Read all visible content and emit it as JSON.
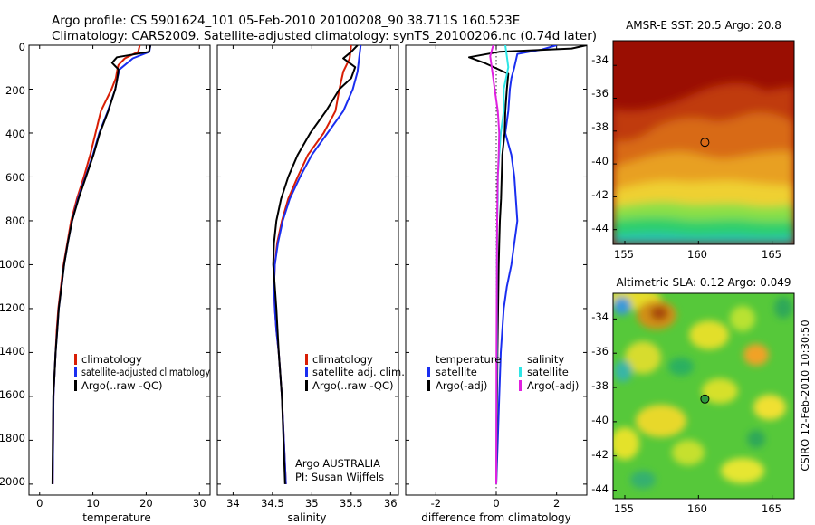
{
  "header": {
    "line1": "Argo profile: CS 5901624_101 05-Feb-2010 20100208_90 38.711S 160.523E",
    "line2": "Climatology: CARS2009. Satellite-adjusted climatology: synTS_20100206.nc (0.74d later)"
  },
  "colors": {
    "climatology": "#d81e05",
    "satellite": "#1a2ef0",
    "argo": "#000000",
    "salinity_satellite": "#2ee6e6",
    "salinity_argo": "#e020e0"
  },
  "chart_data": [
    {
      "type": "line",
      "name": "temperature-profile",
      "xlabel": "temperature",
      "ylabel": "",
      "xlim": [
        -2,
        32
      ],
      "ylim": [
        0,
        2050
      ],
      "y_inverted": true,
      "xticks": [
        "0",
        "10",
        "20",
        "30"
      ],
      "yticks": [
        "0",
        "200",
        "400",
        "600",
        "800",
        "1000",
        "1200",
        "1400",
        "1600",
        "1800",
        "2000"
      ],
      "legend": [
        "climatology",
        "satellite-adjusted climatology",
        "Argo(..raw -QC)"
      ],
      "legend_position": "lower-center",
      "series": [
        {
          "name": "climatology",
          "color": "#d81e05",
          "x": [
            18.8,
            18.5,
            16.0,
            14.8,
            14.6,
            14.3,
            13.5,
            11.5,
            10.5,
            9.5,
            8.3,
            7.0,
            5.9,
            5.2,
            4.5,
            4.0,
            3.5,
            3.2,
            3.0,
            2.8,
            2.6,
            2.45
          ],
          "y": [
            0,
            30,
            60,
            90,
            110,
            150,
            200,
            300,
            400,
            500,
            600,
            700,
            800,
            900,
            1000,
            1100,
            1200,
            1300,
            1400,
            1500,
            1600,
            2000
          ]
        },
        {
          "name": "satellite-adjusted climatology",
          "color": "#1a2ef0",
          "x": [
            20.8,
            20.6,
            17.5,
            16.0,
            15.0,
            14.6,
            14.2,
            12.8,
            11.2,
            10.0,
            8.6,
            7.2,
            6.1,
            5.3,
            4.6,
            4.1,
            3.6,
            3.3,
            3.0,
            2.8,
            2.6,
            2.45
          ],
          "y": [
            0,
            30,
            60,
            90,
            110,
            150,
            200,
            300,
            400,
            500,
            600,
            700,
            800,
            900,
            1000,
            1100,
            1200,
            1300,
            1400,
            1500,
            1600,
            2000
          ]
        },
        {
          "name": "Argo(..raw -QC)",
          "color": "#000000",
          "x": [
            20.8,
            20.5,
            14.5,
            13.6,
            14.8,
            14.6,
            14.2,
            12.9,
            11.3,
            10.1,
            8.7,
            7.3,
            6.1,
            5.3,
            4.6,
            4.1,
            3.6,
            3.3,
            3.0,
            2.8,
            2.55,
            2.4
          ],
          "y": [
            0,
            30,
            55,
            80,
            110,
            150,
            200,
            300,
            400,
            500,
            600,
            700,
            800,
            900,
            1000,
            1100,
            1200,
            1300,
            1400,
            1500,
            1600,
            2000
          ]
        }
      ]
    },
    {
      "type": "line",
      "name": "salinity-profile",
      "xlabel": "salinity",
      "ylabel": "",
      "xlim": [
        33.8,
        36.1
      ],
      "ylim": [
        0,
        2050
      ],
      "y_inverted": true,
      "xticks": [
        "34",
        "34.5",
        "35",
        "35.5",
        "36"
      ],
      "yticks": [],
      "legend": [
        "climatology",
        "satellite adj. clim.",
        "Argo(..raw -QC)"
      ],
      "legend_position": "lower-right",
      "annotation_line1": "Argo AUSTRALIA",
      "annotation_line2": "PI: Susan Wijffels",
      "series": [
        {
          "name": "climatology",
          "color": "#d81e05",
          "x": [
            35.5,
            35.48,
            35.4,
            35.35,
            35.3,
            35.15,
            34.95,
            34.82,
            34.7,
            34.62,
            34.56,
            34.53,
            34.52,
            34.53,
            34.55,
            34.58,
            34.62,
            34.67
          ],
          "y": [
            0,
            60,
            120,
            200,
            300,
            400,
            500,
            600,
            700,
            800,
            900,
            1000,
            1100,
            1200,
            1300,
            1400,
            1600,
            2000
          ]
        },
        {
          "name": "satellite adj. clim.",
          "color": "#1a2ef0",
          "x": [
            35.62,
            35.6,
            35.58,
            35.52,
            35.4,
            35.2,
            35.0,
            34.85,
            34.72,
            34.63,
            34.57,
            34.53,
            34.52,
            34.53,
            34.55,
            34.58,
            34.62,
            34.67
          ],
          "y": [
            0,
            60,
            120,
            200,
            300,
            400,
            500,
            600,
            700,
            800,
            900,
            1000,
            1100,
            1200,
            1300,
            1400,
            1600,
            2000
          ]
        },
        {
          "name": "Argo(..raw -QC)",
          "color": "#000000",
          "x": [
            35.58,
            35.5,
            35.4,
            35.55,
            35.5,
            35.35,
            35.18,
            34.98,
            34.82,
            34.7,
            34.61,
            34.55,
            34.52,
            34.51,
            34.53,
            34.55,
            34.58,
            34.62,
            34.66
          ],
          "y": [
            0,
            30,
            60,
            100,
            150,
            200,
            300,
            400,
            500,
            600,
            700,
            800,
            900,
            1000,
            1100,
            1200,
            1400,
            1600,
            2000
          ]
        }
      ]
    },
    {
      "type": "line",
      "name": "difference-profile",
      "xlabel": "difference from climatology",
      "ylabel": "",
      "xlim": [
        -3,
        3
      ],
      "ylim": [
        0,
        2050
      ],
      "y_inverted": true,
      "xticks": [
        "-2",
        "0",
        "2"
      ],
      "yticks": [],
      "legend_col1_heading": "temperature",
      "legend_col2_heading": "salinity",
      "legend": [
        "satellite",
        "Argo(-adj)",
        "satellite",
        "Argo(-adj)"
      ],
      "legend_position": "lower-center",
      "series": [
        {
          "name": "temperature satellite",
          "color": "#1a2ef0",
          "x": [
            2.0,
            1.5,
            0.7,
            0.6,
            0.5,
            0.45,
            0.4,
            0.3,
            0.5,
            0.6,
            0.7,
            0.6,
            0.5,
            0.35,
            0.25,
            0.15,
            0.1,
            0.05,
            0.0
          ],
          "y": [
            0,
            20,
            40,
            100,
            150,
            200,
            300,
            400,
            500,
            600,
            800,
            900,
            1000,
            1100,
            1200,
            1400,
            1600,
            1800,
            2000
          ]
        },
        {
          "name": "temperature Argo(-adj)",
          "color": "#000000",
          "x": [
            3.0,
            2.5,
            0.1,
            -0.9,
            -0.4,
            0.4,
            0.35,
            0.3,
            0.28,
            0.2,
            0.18,
            0.16,
            0.12,
            0.1,
            0.08,
            0.06,
            0.04,
            0.02,
            0.0
          ],
          "y": [
            0,
            15,
            30,
            55,
            80,
            130,
            200,
            300,
            400,
            500,
            600,
            700,
            800,
            900,
            1000,
            1200,
            1400,
            1700,
            2000
          ]
        },
        {
          "name": "salinity satellite",
          "color": "#2ee6e6",
          "x": [
            0.3,
            0.35,
            0.4,
            0.25,
            0.25,
            0.15,
            0.1,
            0.05,
            0.05,
            0.03,
            0.02,
            0.02,
            0.01,
            0.0
          ],
          "y": [
            0,
            50,
            100,
            200,
            300,
            400,
            500,
            600,
            700,
            800,
            1000,
            1400,
            1700,
            2000
          ]
        },
        {
          "name": "salinity Argo(-adj)",
          "color": "#e020e0",
          "x": [
            -0.1,
            -0.2,
            -0.15,
            -0.05,
            0.05,
            0.1,
            0.08,
            0.05,
            0.04,
            0.03,
            0.02,
            0.01,
            0.0
          ],
          "y": [
            0,
            50,
            100,
            200,
            300,
            400,
            500,
            600,
            700,
            800,
            1000,
            1400,
            2000
          ]
        }
      ]
    },
    {
      "type": "heatmap",
      "name": "amsr-e-sst-map",
      "title": "AMSR-E SST: 20.5  Argo: 20.8",
      "xlim": [
        154.2,
        166.5
      ],
      "ylim": [
        -44.9,
        -32.5
      ],
      "xticks": [
        "155",
        "160",
        "165"
      ],
      "yticks": [
        "-34",
        "-36",
        "-38",
        "-40",
        "-42",
        "-44"
      ],
      "marker": {
        "x": 160.523,
        "y": -38.711
      }
    },
    {
      "type": "heatmap",
      "name": "altimetric-sla-map",
      "title": "Altimetric SLA: 0.12  Argo: 0.049",
      "xlim": [
        154.2,
        166.5
      ],
      "ylim": [
        -44.5,
        -32.5
      ],
      "xticks": [
        "155",
        "160",
        "165"
      ],
      "yticks": [
        "-34",
        "-36",
        "-38",
        "-40",
        "-42",
        "-44"
      ],
      "marker": {
        "x": 160.523,
        "y": -38.711
      }
    }
  ],
  "credit": "CSIRO 12-Feb-2010 10:30:50"
}
